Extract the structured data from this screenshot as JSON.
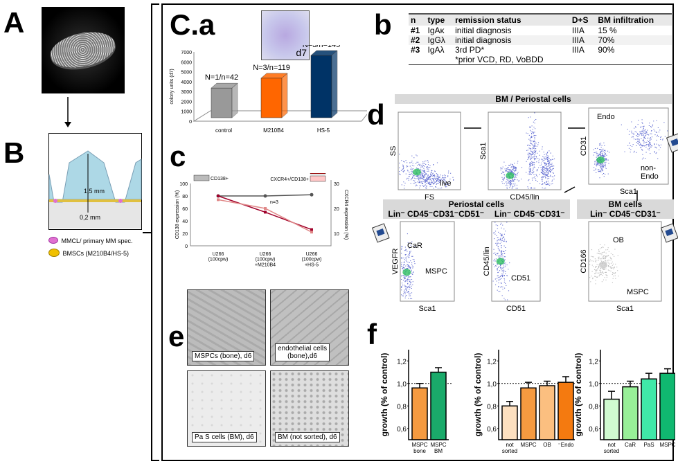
{
  "panels": {
    "A": "A",
    "B": "B",
    "Ca": "C.a",
    "b": "b",
    "c": "c",
    "d": "d",
    "e": "e",
    "f": "f"
  },
  "panelB": {
    "height_label": "1,5 mm",
    "base_label": "0,2 mm",
    "legend": [
      {
        "label": "MMCL/ primary MM spec.",
        "color": "#e070d0"
      },
      {
        "label": "BMSCs (M210B4/HS-5)",
        "color": "#f0c000"
      }
    ]
  },
  "micrograph_label": "d7",
  "chart_data": [
    {
      "id": "colony",
      "type": "bar",
      "title": "",
      "ylabel": "colony units (d7)",
      "categories": [
        "control",
        "M210B4",
        "HS-5"
      ],
      "values": [
        3000,
        4000,
        6300
      ],
      "annotations": [
        "N=1/n=42",
        "N=3/n=119",
        "N=3/n=145"
      ],
      "colors": [
        "#999999",
        "#ff6600",
        "#003366"
      ],
      "yticks": [
        0,
        1000,
        2000,
        3000,
        4000,
        5000,
        6000,
        7000
      ],
      "ylim": [
        0,
        7000
      ]
    },
    {
      "id": "expression",
      "type": "line",
      "categories": [
        "U266\n(100cpw)",
        "U266\n(100cpw)\n+M210B4",
        "U266\n(100cpw)\n+HS-5"
      ],
      "ylabel": "CD138 expression (%)",
      "y2label": "CXCR4 expression (%)",
      "ylim": [
        0,
        100
      ],
      "yticks": [
        0,
        20,
        40,
        60,
        80,
        100
      ],
      "y2lim": [
        5,
        30
      ],
      "y2ticks": [
        10,
        20,
        30
      ],
      "annotation": "n=3",
      "series": [
        {
          "name": "CD138+",
          "axis": "left",
          "values": [
            80,
            80,
            82
          ],
          "color": "#555555",
          "legend_color": "#bbbbbb"
        },
        {
          "name": "CXCR4+",
          "axis": "right",
          "values": [
            25,
            18.5,
            11.5
          ],
          "color": "#a0002a",
          "legend_color": "#c00000"
        },
        {
          "name": "CXCR4+/CD138+",
          "axis": "right",
          "values": [
            23.5,
            20,
            10.5
          ],
          "color": "#e08888",
          "legend_color": "#ffc8c8"
        }
      ]
    },
    {
      "id": "growth1",
      "type": "bar",
      "ylabel": "growth (% of control)",
      "ylim": [
        0.5,
        1.3
      ],
      "yticks": [
        "0,6",
        "0,8",
        "1,0",
        "1,2"
      ],
      "reference": 1.0,
      "categories": [
        "MSPC\nbone",
        "MSPC\nBM"
      ],
      "values": [
        0.96,
        1.1
      ],
      "errors": [
        0.04,
        0.04
      ],
      "colors": [
        "#f59a40",
        "#1aaa6a"
      ]
    },
    {
      "id": "growth2",
      "type": "bar",
      "ylabel": "growth (% of control)",
      "ylim": [
        0.5,
        1.3
      ],
      "yticks": [
        "0,6",
        "0,8",
        "1,0",
        "1,2"
      ],
      "reference": 1.0,
      "categories": [
        "not\nsorted",
        "MSPC",
        "OB",
        "⁻Endo"
      ],
      "values": [
        0.8,
        0.96,
        0.98,
        1.01
      ],
      "errors": [
        0.04,
        0.05,
        0.04,
        0.05
      ],
      "colors": [
        "#fde0c0",
        "#f59a40",
        "#fbbf80",
        "#f47a10"
      ]
    },
    {
      "id": "growth3",
      "type": "bar",
      "ylabel": "growth (% of control)",
      "ylim": [
        0.5,
        1.3
      ],
      "yticks": [
        "0,6",
        "0,8",
        "1,0",
        "1,2"
      ],
      "reference": 1.0,
      "categories": [
        "not\nsorted",
        "CaR",
        "PaS",
        "MSPC"
      ],
      "values": [
        0.86,
        0.97,
        1.04,
        1.09
      ],
      "errors": [
        0.07,
        0.05,
        0.05,
        0.04
      ],
      "colors": [
        "#d0fad0",
        "#98f098",
        "#40e8a8",
        "#10b870"
      ]
    }
  ],
  "table": {
    "headers": [
      "n",
      "type",
      "remission status",
      "D+S",
      "BM infiltration"
    ],
    "rows": [
      [
        "#1",
        "IgAκ",
        "initial diagnosis",
        "IIIA",
        "15 %"
      ],
      [
        "#2",
        "IgGλ",
        "initial diagnosis",
        "IIIA",
        "70%"
      ],
      [
        "#3",
        "IgAλ",
        "3rd PD*\n*prior VCD, RD, VoBDD",
        "IIIA",
        "90%"
      ]
    ]
  },
  "flow": {
    "top_header": "BM / Periostal cells",
    "periostal_header": "Periostal cells",
    "periostal_sub1": "Lin⁻ CD45⁻CD31⁻CD51⁻",
    "periostal_sub2": "Lin⁻ CD45⁻CD31⁻",
    "bm_header": "BM cells",
    "bm_sub": "Lin⁻ CD45⁻CD31⁻",
    "plots": [
      {
        "x": "FS",
        "y": "SS",
        "gates": [
          "live"
        ]
      },
      {
        "x": "CD45/lin",
        "y": "Sca1",
        "gates": []
      },
      {
        "x": "Sca1",
        "y": "CD31",
        "gates": [
          "Endo",
          "non-\nEndo"
        ]
      },
      {
        "x": "Sca1",
        "y": "VEGFR",
        "gates": [
          "CaR",
          "MSPC"
        ]
      },
      {
        "x": "CD51",
        "y": "CD45/lin",
        "gates": [
          "CD51"
        ]
      },
      {
        "x": "Sca1",
        "y": "CD166",
        "gates": [
          "OB",
          "MSPC"
        ]
      }
    ]
  },
  "micrographs": [
    "MSPCs  (bone), d6",
    "endothelial cells\n(bone),d6",
    "Pa S  cells (BM),  d6",
    "BM (not sorted), d6"
  ]
}
